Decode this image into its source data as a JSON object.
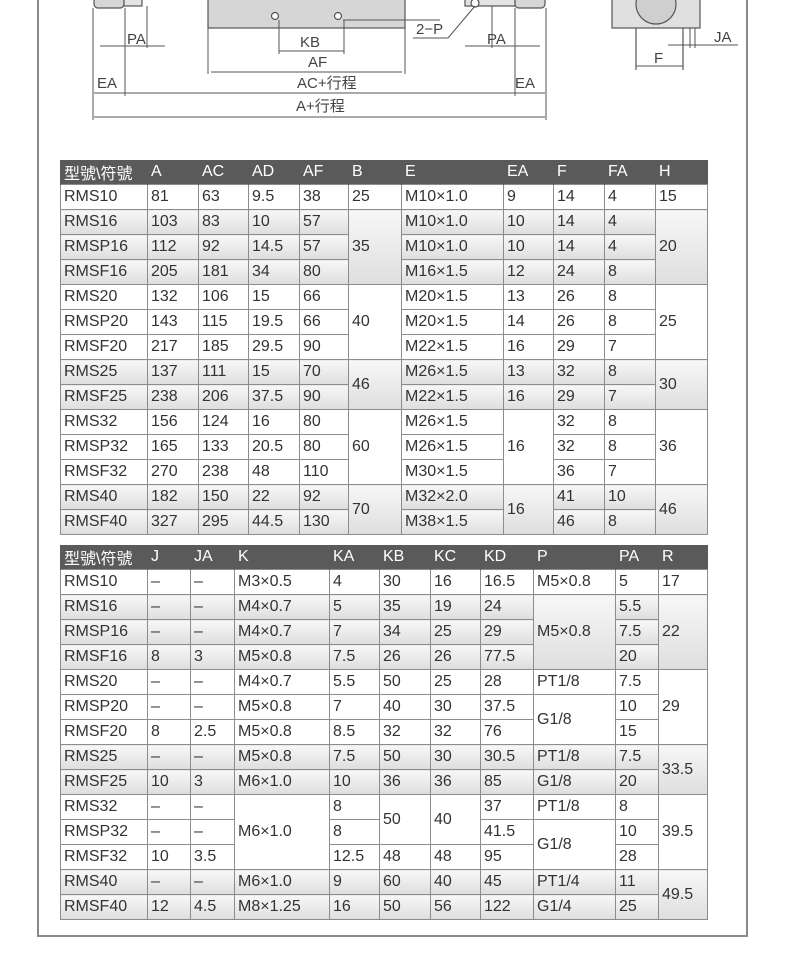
{
  "drawing": {
    "labels": {
      "pa_left": "PA",
      "kb": "KB",
      "af": "AF",
      "ac_stroke": "AC+行程",
      "a_stroke": "A+行程",
      "ea_left": "EA",
      "ea_right": "EA",
      "two_p": "2−P",
      "pa_right": "PA",
      "f": "F",
      "ja": "JA"
    }
  },
  "table1": {
    "headers": [
      "型號\\符號",
      "A",
      "AC",
      "AD",
      "AF",
      "B",
      "E",
      "EA",
      "F",
      "FA",
      "H"
    ],
    "rows": [
      {
        "shaded": false,
        "cells": [
          {
            "v": "RMS10"
          },
          {
            "v": "81"
          },
          {
            "v": "63"
          },
          {
            "v": "9.5"
          },
          {
            "v": "38"
          },
          {
            "v": "25"
          },
          {
            "v": "M10×1.0"
          },
          {
            "v": "9"
          },
          {
            "v": "14"
          },
          {
            "v": "4"
          },
          {
            "v": "15"
          }
        ]
      },
      {
        "shaded": true,
        "cells": [
          {
            "v": "RMS16"
          },
          {
            "v": "103"
          },
          {
            "v": "83"
          },
          {
            "v": "10"
          },
          {
            "v": "57"
          },
          {
            "v": "35",
            "rs": 3
          },
          {
            "v": "M10×1.0"
          },
          {
            "v": "10"
          },
          {
            "v": "14"
          },
          {
            "v": "4"
          },
          {
            "v": "20",
            "rs": 3
          }
        ]
      },
      {
        "shaded": true,
        "cells": [
          {
            "v": "RMSP16"
          },
          {
            "v": "112"
          },
          {
            "v": "92"
          },
          {
            "v": "14.5"
          },
          {
            "v": "57"
          },
          {
            "v": "M10×1.0"
          },
          {
            "v": "10"
          },
          {
            "v": "14"
          },
          {
            "v": "4"
          }
        ]
      },
      {
        "shaded": true,
        "cells": [
          {
            "v": "RMSF16"
          },
          {
            "v": "205"
          },
          {
            "v": "181"
          },
          {
            "v": "34"
          },
          {
            "v": "80"
          },
          {
            "v": "M16×1.5"
          },
          {
            "v": "12"
          },
          {
            "v": "24"
          },
          {
            "v": "8"
          }
        ]
      },
      {
        "shaded": false,
        "cells": [
          {
            "v": "RMS20"
          },
          {
            "v": "132"
          },
          {
            "v": "106"
          },
          {
            "v": "15"
          },
          {
            "v": "66"
          },
          {
            "v": "40",
            "rs": 3
          },
          {
            "v": "M20×1.5"
          },
          {
            "v": "13"
          },
          {
            "v": "26"
          },
          {
            "v": "8"
          },
          {
            "v": "25",
            "rs": 3
          }
        ]
      },
      {
        "shaded": false,
        "cells": [
          {
            "v": "RMSP20"
          },
          {
            "v": "143"
          },
          {
            "v": "115"
          },
          {
            "v": "19.5"
          },
          {
            "v": "66"
          },
          {
            "v": "M20×1.5"
          },
          {
            "v": "14"
          },
          {
            "v": "26"
          },
          {
            "v": "8"
          }
        ]
      },
      {
        "shaded": false,
        "cells": [
          {
            "v": "RMSF20"
          },
          {
            "v": "217"
          },
          {
            "v": "185"
          },
          {
            "v": "29.5"
          },
          {
            "v": "90"
          },
          {
            "v": "M22×1.5"
          },
          {
            "v": "16"
          },
          {
            "v": "29"
          },
          {
            "v": "7"
          }
        ]
      },
      {
        "shaded": true,
        "cells": [
          {
            "v": "RMS25"
          },
          {
            "v": "137"
          },
          {
            "v": "111"
          },
          {
            "v": "15"
          },
          {
            "v": "70"
          },
          {
            "v": "46",
            "rs": 2
          },
          {
            "v": "M26×1.5"
          },
          {
            "v": "13"
          },
          {
            "v": "32"
          },
          {
            "v": "8"
          },
          {
            "v": "30",
            "rs": 2
          }
        ]
      },
      {
        "shaded": true,
        "cells": [
          {
            "v": "RMSF25"
          },
          {
            "v": "238"
          },
          {
            "v": "206"
          },
          {
            "v": "37.5"
          },
          {
            "v": "90"
          },
          {
            "v": "M22×1.5"
          },
          {
            "v": "16"
          },
          {
            "v": "29"
          },
          {
            "v": "7"
          }
        ]
      },
      {
        "shaded": false,
        "cells": [
          {
            "v": "RMS32"
          },
          {
            "v": "156"
          },
          {
            "v": "124"
          },
          {
            "v": "16"
          },
          {
            "v": "80"
          },
          {
            "v": "60",
            "rs": 3
          },
          {
            "v": "M26×1.5"
          },
          {
            "v": "16",
            "rs": 3
          },
          {
            "v": "32"
          },
          {
            "v": "8"
          },
          {
            "v": "36",
            "rs": 3
          }
        ]
      },
      {
        "shaded": false,
        "cells": [
          {
            "v": "RMSP32"
          },
          {
            "v": "165"
          },
          {
            "v": "133"
          },
          {
            "v": "20.5"
          },
          {
            "v": "80"
          },
          {
            "v": "M26×1.5"
          },
          {
            "v": "32"
          },
          {
            "v": "8"
          }
        ]
      },
      {
        "shaded": false,
        "cells": [
          {
            "v": "RMSF32"
          },
          {
            "v": "270"
          },
          {
            "v": "238"
          },
          {
            "v": "48"
          },
          {
            "v": "110"
          },
          {
            "v": "M30×1.5"
          },
          {
            "v": "36"
          },
          {
            "v": "7"
          }
        ]
      },
      {
        "shaded": true,
        "cells": [
          {
            "v": "RMS40"
          },
          {
            "v": "182"
          },
          {
            "v": "150"
          },
          {
            "v": "22"
          },
          {
            "v": "92"
          },
          {
            "v": "70",
            "rs": 2
          },
          {
            "v": "M32×2.0"
          },
          {
            "v": "16",
            "rs": 2
          },
          {
            "v": "41"
          },
          {
            "v": "10"
          },
          {
            "v": "46",
            "rs": 2
          }
        ]
      },
      {
        "shaded": true,
        "cells": [
          {
            "v": "RMSF40"
          },
          {
            "v": "327"
          },
          {
            "v": "295"
          },
          {
            "v": "44.5"
          },
          {
            "v": "130"
          },
          {
            "v": "M38×1.5"
          },
          {
            "v": "46"
          },
          {
            "v": "8"
          }
        ]
      }
    ]
  },
  "table2": {
    "headers": [
      "型號\\符號",
      "J",
      "JA",
      "K",
      "KA",
      "KB",
      "KC",
      "KD",
      "P",
      "PA",
      "R"
    ],
    "rows": [
      {
        "shaded": false,
        "cells": [
          {
            "v": "RMS10"
          },
          {
            "v": "–"
          },
          {
            "v": "–"
          },
          {
            "v": "M3×0.5"
          },
          {
            "v": "4"
          },
          {
            "v": "30"
          },
          {
            "v": "16"
          },
          {
            "v": "16.5"
          },
          {
            "v": "M5×0.8"
          },
          {
            "v": "5"
          },
          {
            "v": "17"
          }
        ]
      },
      {
        "shaded": true,
        "cells": [
          {
            "v": "RMS16"
          },
          {
            "v": "–"
          },
          {
            "v": "–"
          },
          {
            "v": "M4×0.7"
          },
          {
            "v": "5"
          },
          {
            "v": "35"
          },
          {
            "v": "19"
          },
          {
            "v": "24"
          },
          {
            "v": "M5×0.8",
            "rs": 3
          },
          {
            "v": "5.5"
          },
          {
            "v": "22",
            "rs": 3
          }
        ]
      },
      {
        "shaded": true,
        "cells": [
          {
            "v": "RMSP16"
          },
          {
            "v": "–"
          },
          {
            "v": "–"
          },
          {
            "v": "M4×0.7"
          },
          {
            "v": "7"
          },
          {
            "v": "34"
          },
          {
            "v": "25"
          },
          {
            "v": "29"
          },
          {
            "v": "7.5"
          }
        ]
      },
      {
        "shaded": true,
        "cells": [
          {
            "v": "RMSF16"
          },
          {
            "v": "8"
          },
          {
            "v": "3"
          },
          {
            "v": "M5×0.8"
          },
          {
            "v": "7.5"
          },
          {
            "v": "26"
          },
          {
            "v": "26"
          },
          {
            "v": "77.5"
          },
          {
            "v": "20"
          }
        ]
      },
      {
        "shaded": false,
        "cells": [
          {
            "v": "RMS20"
          },
          {
            "v": "–"
          },
          {
            "v": "–"
          },
          {
            "v": "M4×0.7"
          },
          {
            "v": "5.5"
          },
          {
            "v": "50"
          },
          {
            "v": "25"
          },
          {
            "v": "28"
          },
          {
            "v": "PT1/8"
          },
          {
            "v": "7.5"
          },
          {
            "v": "29",
            "rs": 3
          }
        ]
      },
      {
        "shaded": false,
        "cells": [
          {
            "v": "RMSP20"
          },
          {
            "v": "–"
          },
          {
            "v": "–"
          },
          {
            "v": "M5×0.8"
          },
          {
            "v": "7"
          },
          {
            "v": "40"
          },
          {
            "v": "30"
          },
          {
            "v": "37.5"
          },
          {
            "v": "G1/8",
            "rs": 2
          },
          {
            "v": "10"
          }
        ]
      },
      {
        "shaded": false,
        "cells": [
          {
            "v": "RMSF20"
          },
          {
            "v": "8"
          },
          {
            "v": "2.5"
          },
          {
            "v": "M5×0.8"
          },
          {
            "v": "8.5"
          },
          {
            "v": "32"
          },
          {
            "v": "32"
          },
          {
            "v": "76"
          },
          {
            "v": "15"
          }
        ]
      },
      {
        "shaded": true,
        "cells": [
          {
            "v": "RMS25"
          },
          {
            "v": "–"
          },
          {
            "v": "–"
          },
          {
            "v": "M5×0.8"
          },
          {
            "v": "7.5"
          },
          {
            "v": "50"
          },
          {
            "v": "30"
          },
          {
            "v": "30.5"
          },
          {
            "v": "PT1/8"
          },
          {
            "v": "7.5"
          },
          {
            "v": "33.5",
            "rs": 2
          }
        ]
      },
      {
        "shaded": true,
        "cells": [
          {
            "v": "RMSF25"
          },
          {
            "v": "10"
          },
          {
            "v": "3"
          },
          {
            "v": "M6×1.0"
          },
          {
            "v": "10"
          },
          {
            "v": "36"
          },
          {
            "v": "36"
          },
          {
            "v": "85"
          },
          {
            "v": "G1/8"
          },
          {
            "v": "20"
          }
        ]
      },
      {
        "shaded": false,
        "cells": [
          {
            "v": "RMS32"
          },
          {
            "v": "–"
          },
          {
            "v": "–"
          },
          {
            "v": "M6×1.0",
            "rs": 3
          },
          {
            "v": "8"
          },
          {
            "v": "50",
            "rs": 2
          },
          {
            "v": "40",
            "rs": 2
          },
          {
            "v": "37"
          },
          {
            "v": "PT1/8"
          },
          {
            "v": "8"
          },
          {
            "v": "39.5",
            "rs": 3
          }
        ]
      },
      {
        "shaded": false,
        "cells": [
          {
            "v": "RMSP32"
          },
          {
            "v": "–"
          },
          {
            "v": "–"
          },
          {
            "v": "8"
          },
          {
            "v": "41.5"
          },
          {
            "v": "G1/8",
            "rs": 2
          },
          {
            "v": "10"
          }
        ]
      },
      {
        "shaded": false,
        "cells": [
          {
            "v": "RMSF32"
          },
          {
            "v": "10"
          },
          {
            "v": "3.5"
          },
          {
            "v": "12.5"
          },
          {
            "v": "48"
          },
          {
            "v": "48"
          },
          {
            "v": "95"
          },
          {
            "v": "28"
          }
        ]
      },
      {
        "shaded": true,
        "cells": [
          {
            "v": "RMS40"
          },
          {
            "v": "–"
          },
          {
            "v": "–"
          },
          {
            "v": "M6×1.0"
          },
          {
            "v": "9"
          },
          {
            "v": "60"
          },
          {
            "v": "40"
          },
          {
            "v": "45"
          },
          {
            "v": "PT1/4"
          },
          {
            "v": "11"
          },
          {
            "v": "49.5",
            "rs": 2
          }
        ]
      },
      {
        "shaded": true,
        "cells": [
          {
            "v": "RMSF40"
          },
          {
            "v": "12"
          },
          {
            "v": "4.5"
          },
          {
            "v": "M8×1.25"
          },
          {
            "v": "16"
          },
          {
            "v": "50"
          },
          {
            "v": "56"
          },
          {
            "v": "122"
          },
          {
            "v": "G1/4"
          },
          {
            "v": "25"
          }
        ]
      }
    ]
  }
}
